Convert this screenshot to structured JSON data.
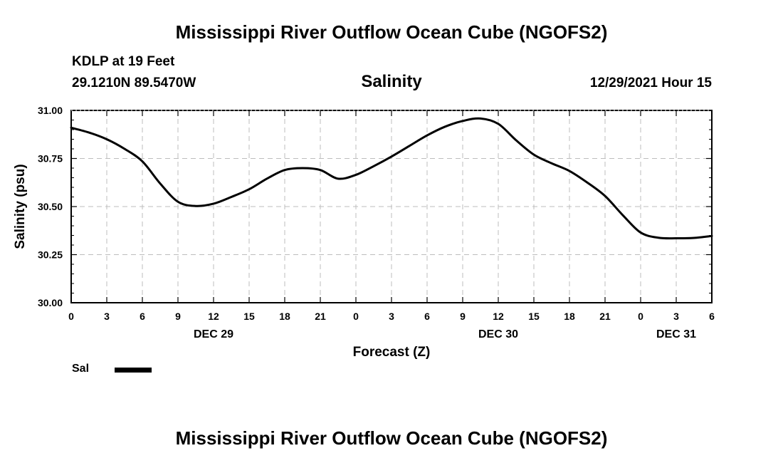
{
  "header": {
    "title": "Mississippi River Outflow Ocean Cube (NGOFS2)",
    "station": "KDLP at 19 Feet",
    "coords": "29.1210N  89.5470W",
    "variable": "Salinity",
    "datetime": "12/29/2021 Hour 15"
  },
  "footer": {
    "title": "Mississippi River Outflow Ocean Cube (NGOFS2)"
  },
  "legend": {
    "label": "Sal",
    "color": "#000000"
  },
  "chart_data": {
    "type": "line",
    "title": "Salinity",
    "xlabel": "Forecast (Z)",
    "ylabel": "Salinity (psu)",
    "xlim": [
      0,
      54
    ],
    "ylim": [
      30.0,
      31.0
    ],
    "yticks": [
      "30.00",
      "30.25",
      "30.50",
      "30.75",
      "31.00"
    ],
    "ytick_values": [
      30.0,
      30.25,
      30.5,
      30.75,
      31.0
    ],
    "xtick_labels": [
      "0",
      "3",
      "6",
      "9",
      "12",
      "15",
      "18",
      "21",
      "0",
      "3",
      "6",
      "9",
      "12",
      "15",
      "18",
      "21",
      "0",
      "3",
      "6"
    ],
    "date_labels": [
      {
        "label": "DEC 29",
        "hour": 12
      },
      {
        "label": "DEC 30",
        "hour": 36
      },
      {
        "label": "DEC 31",
        "hour": 51
      }
    ],
    "grid": true,
    "series": [
      {
        "name": "Sal",
        "x": [
          0,
          1.5,
          3,
          4.5,
          6,
          7.5,
          9,
          10.5,
          12,
          13.5,
          15,
          16.5,
          18,
          19.5,
          21,
          22.5,
          24,
          25.5,
          27,
          28.5,
          30,
          31.5,
          33,
          34.5,
          36,
          37.5,
          39,
          40.5,
          42,
          43.5,
          45,
          46.5,
          48,
          49.5,
          51,
          52.5,
          54
        ],
        "values": [
          30.91,
          30.885,
          30.85,
          30.8,
          30.735,
          30.62,
          30.525,
          30.503,
          30.515,
          30.55,
          30.59,
          30.645,
          30.69,
          30.7,
          30.69,
          30.645,
          30.665,
          30.71,
          30.76,
          30.815,
          30.87,
          30.915,
          30.945,
          30.958,
          30.93,
          30.845,
          30.77,
          30.725,
          30.685,
          30.625,
          30.555,
          30.455,
          30.365,
          30.338,
          30.335,
          30.337,
          30.347
        ]
      }
    ]
  }
}
